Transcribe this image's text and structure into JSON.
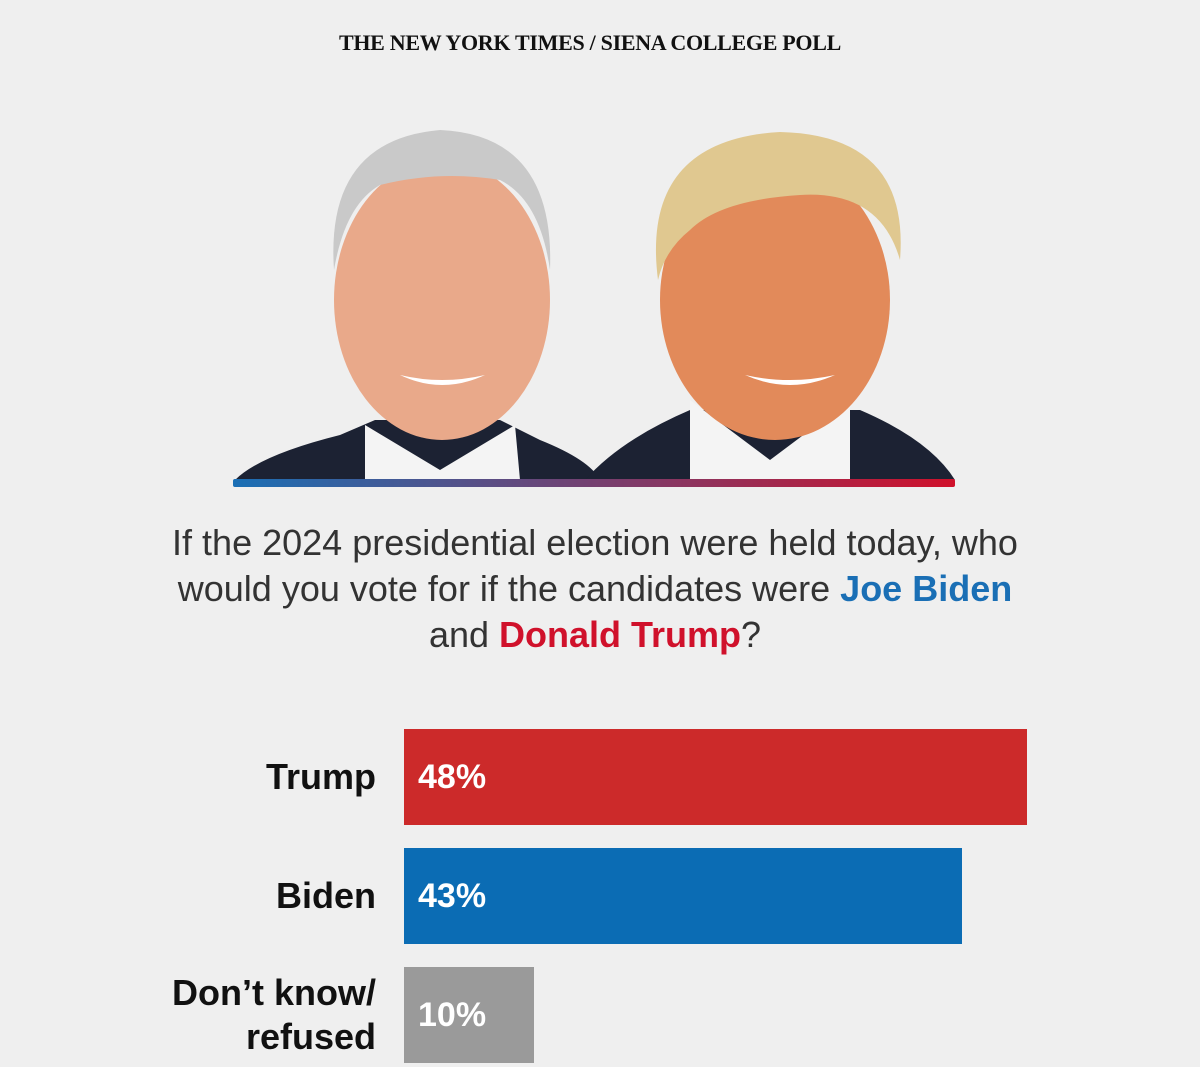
{
  "chart_data": {
    "type": "bar",
    "orientation": "horizontal",
    "title": "THE NEW YORK TIMES / SIENA COLLEGE POLL",
    "question": [
      "If the 2024 presidential election were held today, who would you vote for if the candidates were",
      "Joe Biden",
      "and",
      "Donald Trump",
      "?"
    ],
    "question_colors": [
      "#333333",
      "#1a6fb5",
      "#333333",
      "#d0112b",
      "#333333"
    ],
    "categories": [
      "Trump",
      "Biden",
      "Don’t know/ refused"
    ],
    "values": [
      48,
      43,
      10
    ],
    "value_labels": [
      "48%",
      "43%",
      "10%"
    ],
    "colors": [
      "#cc2a2a",
      "#0b6cb4",
      "#9a9a9a"
    ]
  }
}
